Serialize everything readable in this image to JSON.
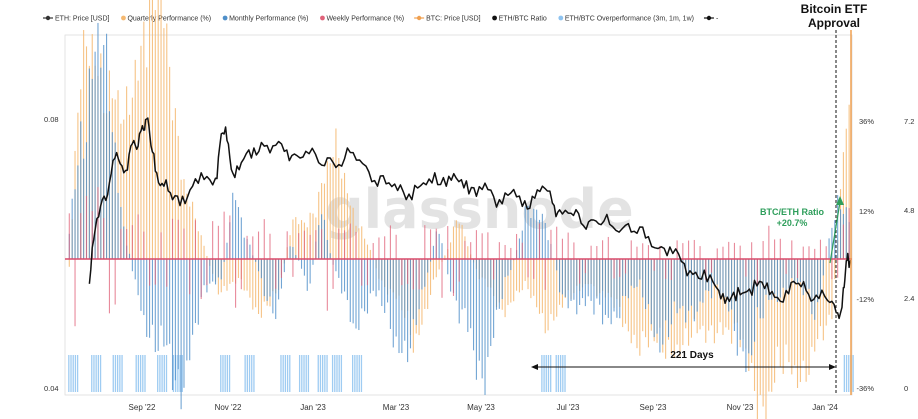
{
  "colors": {
    "eth_price": "#333333",
    "quarterly": "#f5b971",
    "monthly": "#4f8fc9",
    "weekly": "#e0637a",
    "btc_price": "#f0a050",
    "ratio": "#111111",
    "overperformance": "#8ec3f0",
    "zero_band": "#d94a6a",
    "annotation_green": "#2e9e5b",
    "etf_line": "#f0a050"
  },
  "watermark": "glassnode",
  "chart_data": {
    "type": "line",
    "x_ticks": [
      "Sep '22",
      "Nov '22",
      "Jan '23",
      "Mar '23",
      "May '23",
      "Jul '23",
      "Sep '23",
      "Nov '23",
      "Jan '24"
    ],
    "left_axis": {
      "ticks": [
        "0.08",
        "0.04"
      ],
      "ylim": [
        0.04,
        0.08
      ]
    },
    "perf_axis": {
      "ticks": [
        "36%",
        "12%",
        "-12%",
        "-36%"
      ]
    },
    "right_axis": {
      "ticks": [
        "7.2",
        "4.8",
        "2.4",
        "0"
      ]
    },
    "legend": [
      {
        "label": "ETH: Price [USD]",
        "marker": "dot-line",
        "color": "#333333"
      },
      {
        "label": "Quarterly Performance (%)",
        "marker": "dot",
        "color": "#f5b971"
      },
      {
        "label": "Monthly Performance (%)",
        "marker": "dot",
        "color": "#4f8fc9"
      },
      {
        "label": "Weekly Performance (%)",
        "marker": "dot",
        "color": "#e0637a"
      },
      {
        "label": "BTC: Price [USD]",
        "marker": "dot-line",
        "color": "#f0a050"
      },
      {
        "label": "ETH/BTC Ratio",
        "marker": "dot",
        "color": "#111111"
      },
      {
        "label": "ETH/BTC Overperformance (3m, 1m, 1w)",
        "marker": "dot",
        "color": "#8ec3f0"
      },
      {
        "label": "-",
        "marker": "dot-line",
        "color": "#111111"
      }
    ],
    "series": [
      {
        "name": "ETH/BTC Ratio",
        "x": [
          "2022-08-01",
          "2022-08-05",
          "2022-08-10",
          "2022-08-15",
          "2022-08-20",
          "2022-08-25",
          "2022-08-30",
          "2022-09-03",
          "2022-09-07",
          "2022-09-10",
          "2022-09-13",
          "2022-09-17",
          "2022-09-22",
          "2022-09-28",
          "2022-10-05",
          "2022-10-12",
          "2022-10-20",
          "2022-10-28",
          "2022-11-01",
          "2022-11-05",
          "2022-11-09",
          "2022-11-15",
          "2022-11-22",
          "2022-11-29",
          "2022-12-07",
          "2022-12-15",
          "2022-12-22",
          "2022-12-30",
          "2023-01-08",
          "2023-01-16",
          "2023-01-24",
          "2023-02-01",
          "2023-02-10",
          "2023-02-18",
          "2023-02-26",
          "2023-03-06",
          "2023-03-14",
          "2023-03-22",
          "2023-03-30",
          "2023-04-07",
          "2023-04-14",
          "2023-04-21",
          "2023-04-28",
          "2023-05-06",
          "2023-05-14",
          "2023-05-22",
          "2023-05-30",
          "2023-06-06",
          "2023-06-13",
          "2023-06-20",
          "2023-06-25",
          "2023-07-03",
          "2023-07-10",
          "2023-07-17",
          "2023-07-24",
          "2023-08-01",
          "2023-08-10",
          "2023-08-18",
          "2023-08-26",
          "2023-09-04",
          "2023-09-12",
          "2023-09-20",
          "2023-09-28",
          "2023-10-06",
          "2023-10-14",
          "2023-10-20",
          "2023-10-26",
          "2023-11-01",
          "2023-11-08",
          "2023-11-15",
          "2023-11-22",
          "2023-11-30",
          "2023-12-07",
          "2023-12-14",
          "2023-12-21",
          "2023-12-29",
          "2024-01-04",
          "2024-01-08",
          "2024-01-10",
          "2024-01-12",
          "2024-01-14"
        ],
        "values": [
          0.0555,
          0.0635,
          0.068,
          0.0705,
          0.075,
          0.072,
          0.076,
          0.0755,
          0.079,
          0.08,
          0.076,
          0.072,
          0.07,
          0.068,
          0.0685,
          0.07,
          0.071,
          0.0712,
          0.0778,
          0.0768,
          0.072,
          0.0735,
          0.0742,
          0.0765,
          0.076,
          0.0752,
          0.0748,
          0.0752,
          0.0735,
          0.0742,
          0.073,
          0.075,
          0.073,
          0.07,
          0.0705,
          0.0702,
          0.068,
          0.0705,
          0.072,
          0.07,
          0.0712,
          0.0708,
          0.0685,
          0.0695,
          0.068,
          0.069,
          0.067,
          0.0685,
          0.07,
          0.0675,
          0.0665,
          0.066,
          0.0645,
          0.065,
          0.0643,
          0.064,
          0.0642,
          0.063,
          0.0625,
          0.061,
          0.06,
          0.0585,
          0.0572,
          0.0558,
          0.0545,
          0.0535,
          0.053,
          0.0542,
          0.056,
          0.0548,
          0.0535,
          0.0545,
          0.0555,
          0.0545,
          0.0538,
          0.053,
          0.0512,
          0.052,
          0.056,
          0.06,
          0.059
        ]
      },
      {
        "name": "Quarterly Performance (%)",
        "x": [
          "2022-07-15",
          "2022-07-25",
          "2022-08-05",
          "2022-08-15",
          "2022-08-25",
          "2022-09-01",
          "2022-09-08",
          "2022-09-15",
          "2022-09-25",
          "2022-10-05",
          "2022-10-18",
          "2022-11-01",
          "2022-11-15",
          "2022-11-30",
          "2022-12-10",
          "2022-12-20",
          "2022-12-31",
          "2023-01-10",
          "2023-01-20",
          "2023-01-31",
          "2023-02-10",
          "2023-02-20",
          "2023-03-01",
          "2023-03-15",
          "2023-03-31",
          "2023-04-15",
          "2023-04-30",
          "2023-05-15",
          "2023-05-31",
          "2023-06-15",
          "2023-06-30",
          "2023-07-15",
          "2023-07-31",
          "2023-08-15",
          "2023-08-31",
          "2023-09-15",
          "2023-09-30",
          "2023-10-15",
          "2023-10-31",
          "2023-11-15",
          "2023-11-30",
          "2023-12-15",
          "2023-12-31",
          "2024-01-10"
        ],
        "values": [
          -20,
          40,
          60,
          45,
          30,
          45,
          70,
          75,
          45,
          25,
          5,
          -10,
          -5,
          -15,
          -10,
          8,
          10,
          20,
          25,
          15,
          5,
          -5,
          -10,
          -20,
          -5,
          10,
          -5,
          -12,
          -8,
          -15,
          -12,
          -5,
          -12,
          -18,
          -25,
          -20,
          -22,
          -15,
          -25,
          -35,
          -30,
          -25,
          -20,
          30
        ]
      },
      {
        "name": "Monthly Performance (%)",
        "x": [
          "2022-07-15",
          "2022-07-25",
          "2022-08-05",
          "2022-08-15",
          "2022-08-25",
          "2022-09-01",
          "2022-09-10",
          "2022-09-20",
          "2022-10-01",
          "2022-10-10",
          "2022-10-20",
          "2022-11-01",
          "2022-11-10",
          "2022-11-20",
          "2022-12-01",
          "2022-12-10",
          "2022-12-20",
          "2023-01-01",
          "2023-01-10",
          "2023-01-20",
          "2023-02-01",
          "2023-02-15",
          "2023-03-01",
          "2023-03-15",
          "2023-04-01",
          "2023-04-15",
          "2023-05-01",
          "2023-05-15",
          "2023-06-01",
          "2023-06-15",
          "2023-06-25",
          "2023-07-05",
          "2023-07-20",
          "2023-08-05",
          "2023-08-20",
          "2023-09-05",
          "2023-09-20",
          "2023-10-05",
          "2023-10-20",
          "2023-11-05",
          "2023-11-20",
          "2023-12-05",
          "2023-12-20",
          "2024-01-05"
        ],
        "values": [
          -5,
          35,
          50,
          40,
          10,
          -5,
          -15,
          -25,
          -35,
          -20,
          -10,
          -5,
          15,
          5,
          -8,
          -12,
          5,
          -8,
          12,
          -5,
          -15,
          -10,
          -18,
          -22,
          8,
          -15,
          -28,
          -12,
          10,
          12,
          -8,
          -10,
          -15,
          -12,
          -8,
          -20,
          -15,
          -8,
          -12,
          -25,
          -10,
          -5,
          -15,
          15
        ]
      },
      {
        "name": "Weekly Performance (%)",
        "x": [
          "2022-07-20",
          "2022-08-05",
          "2022-08-20",
          "2022-09-05",
          "2022-09-20",
          "2022-10-05",
          "2022-10-20",
          "2022-11-05",
          "2022-11-20",
          "2022-12-05",
          "2022-12-20",
          "2023-01-05",
          "2023-01-20",
          "2023-02-05",
          "2023-02-20",
          "2023-03-05",
          "2023-03-20",
          "2023-04-05",
          "2023-04-20",
          "2023-05-05",
          "2023-05-20",
          "2023-06-05",
          "2023-06-20",
          "2023-07-05",
          "2023-07-20",
          "2023-08-05",
          "2023-08-20",
          "2023-09-05",
          "2023-09-20",
          "2023-10-05",
          "2023-10-20",
          "2023-11-05",
          "2023-11-20",
          "2023-12-05",
          "2023-12-20",
          "2024-01-05",
          "2024-01-12"
        ],
        "values": [
          15,
          20,
          12,
          10,
          8,
          12,
          10,
          14,
          8,
          10,
          6,
          10,
          12,
          8,
          6,
          10,
          8,
          12,
          6,
          8,
          4,
          8,
          10,
          6,
          5,
          6,
          4,
          5,
          6,
          5,
          4,
          6,
          8,
          5,
          4,
          6,
          18
        ]
      },
      {
        "name": "ETH/BTC Overperformance (3m, 1m, 1w)",
        "x": [
          "2022-07-20",
          "2022-08-05",
          "2022-08-20",
          "2022-09-05",
          "2022-09-20",
          "2022-10-01",
          "2022-11-03",
          "2022-11-20",
          "2022-12-15",
          "2022-12-28",
          "2023-01-10",
          "2023-01-20",
          "2023-02-03",
          "2023-06-15",
          "2023-06-25",
          "2024-01-12"
        ],
        "values": [
          1,
          1,
          1,
          1,
          1,
          1,
          1,
          1,
          1,
          1,
          1,
          1,
          1,
          1,
          1,
          1
        ]
      }
    ],
    "annotations": {
      "etf_title": [
        "Bitcoin ETF",
        "Approval"
      ],
      "ratio_change_label": "BTC/ETH Ratio",
      "ratio_change_value": "+20.7%",
      "days_label": "221 Days"
    }
  }
}
